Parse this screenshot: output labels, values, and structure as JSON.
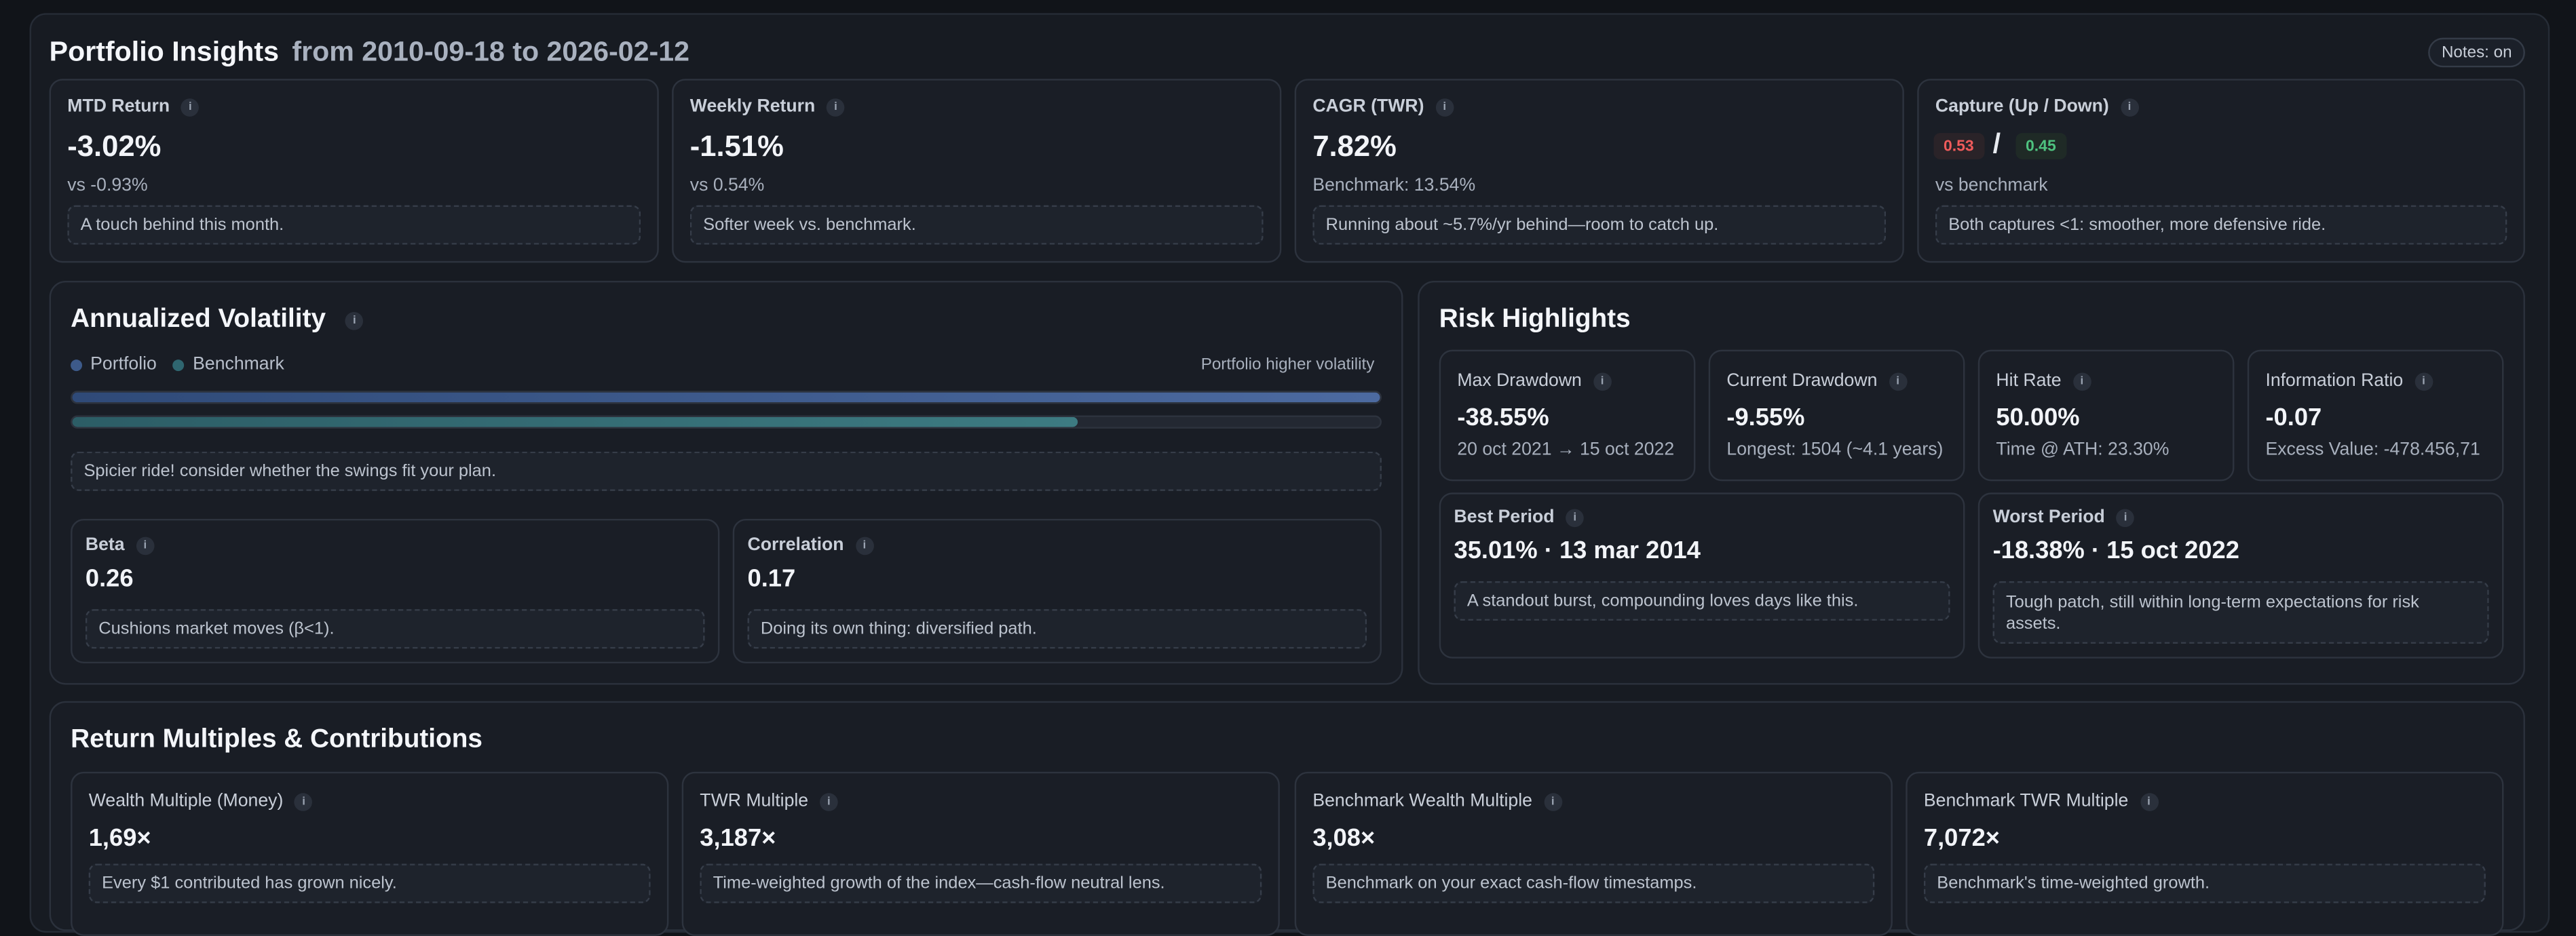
{
  "header": {
    "title": "Portfolio Insights",
    "date_range": "from 2010-09-18 to 2026-02-12",
    "notes_toggle": "Notes: on"
  },
  "kpis": [
    {
      "label": "MTD Return",
      "value": "-3.02%",
      "sub": "vs -0.93%",
      "note": "A touch behind this month."
    },
    {
      "label": "Weekly Return",
      "value": "-1.51%",
      "sub": "vs 0.54%",
      "note": "Softer week vs. benchmark."
    },
    {
      "label": "CAGR (TWR)",
      "value": "7.82%",
      "sub": "Benchmark: 13.54%",
      "note": "Running about ~5.7%/yr behind—room to catch up."
    },
    {
      "label": "Capture (Up / Down)",
      "up": "0.53",
      "separator": "/",
      "down": "0.45",
      "sub": "vs benchmark",
      "note": "Both captures <1: smoother, more defensive ride."
    }
  ],
  "volatility": {
    "title": "Annualized Volatility",
    "legend": [
      {
        "label": "Portfolio",
        "color": "#3d5a8a"
      },
      {
        "label": "Benchmark",
        "color": "#2f6670"
      }
    ],
    "status": "Portfolio higher volatility",
    "portfolio_level": 1.0,
    "benchmark_level": 0.769,
    "note": "Spicier ride! consider whether the swings fit your plan.",
    "beta": {
      "label": "Beta",
      "value": "0.26",
      "note": "Cushions market moves (β<1)."
    },
    "correlation": {
      "label": "Correlation",
      "value": "0.17",
      "note": "Doing its own thing: diversified path."
    }
  },
  "risk": {
    "title": "Risk Highlights",
    "cards": [
      {
        "label": "Max Drawdown",
        "value": "-38.55%",
        "sub": "20 oct 2021 → 15 oct 2022"
      },
      {
        "label": "Current Drawdown",
        "value": "-9.55%",
        "sub": "Longest: 1504 (~4.1 years)"
      },
      {
        "label": "Hit Rate",
        "value": "50.00%",
        "sub": "Time @ ATH: 23.30%"
      },
      {
        "label": "Information Ratio",
        "value": "-0.07",
        "sub": "Excess Value: -478.456,71"
      }
    ],
    "best": {
      "label": "Best Period",
      "value": "35.01% · 13 mar 2014",
      "note": "A standout burst, compounding loves days like this."
    },
    "worst": {
      "label": "Worst Period",
      "value": "-18.38% · 15 oct 2022",
      "note": "Tough patch, still within long-term expectations for risk assets."
    }
  },
  "multiples": {
    "title": "Return Multiples & Contributions",
    "cards": [
      {
        "label": "Wealth Multiple (Money)",
        "value": "1,69×",
        "note": "Every $1 contributed has grown nicely."
      },
      {
        "label": "TWR Multiple",
        "value": "3,187×",
        "note": "Time-weighted growth of the index—cash-flow neutral lens."
      },
      {
        "label": "Benchmark Wealth Multiple",
        "value": "3,08×",
        "note": "Benchmark on your exact cash-flow timestamps."
      },
      {
        "label": "Benchmark TWR Multiple",
        "value": "7,072×",
        "note": "Benchmark's time-weighted growth."
      }
    ]
  },
  "info_glyph": "i"
}
